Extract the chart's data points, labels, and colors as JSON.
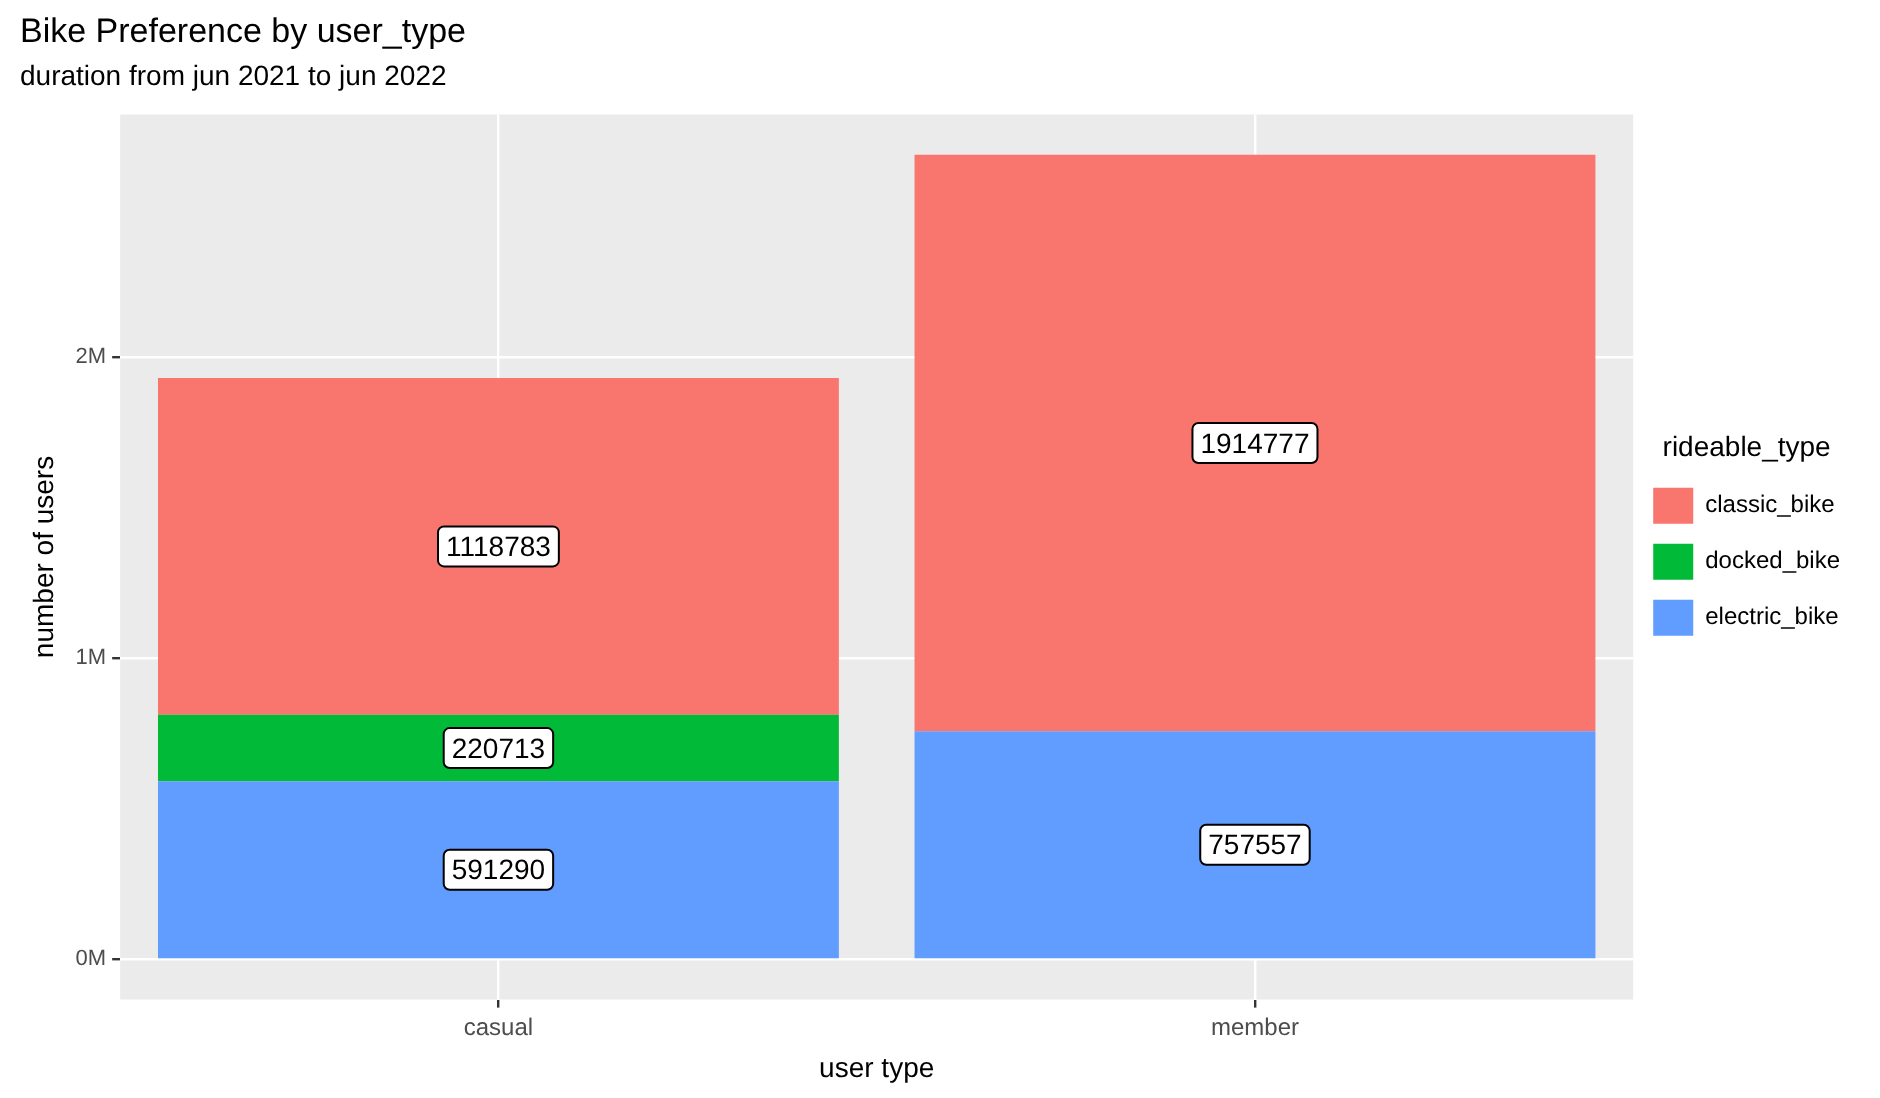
{
  "chart_data": {
    "type": "bar",
    "title": "Bike Preference by user_type",
    "subtitle": "duration from jun 2021 to jun 2022",
    "xlabel": "user type",
    "ylabel": "number of users",
    "legend_title": "rideable_type",
    "categories": [
      "casual",
      "member"
    ],
    "series": [
      {
        "name": "electric_bike",
        "color": "#619cff",
        "values": [
          591290,
          757557
        ]
      },
      {
        "name": "docked_bike",
        "color": "#00ba38",
        "values": [
          220713,
          null
        ]
      },
      {
        "name": "classic_bike",
        "color": "#f8766d",
        "values": [
          1118783,
          1914777
        ]
      }
    ],
    "stacked": true,
    "data_labels": true,
    "ylim": [
      -133617,
      2805951
    ],
    "yticks": [
      {
        "value": 0,
        "label": "0M"
      },
      {
        "value": 1000000,
        "label": "1M"
      },
      {
        "value": 2000000,
        "label": "2M"
      }
    ],
    "grid": true,
    "legend": "right"
  }
}
